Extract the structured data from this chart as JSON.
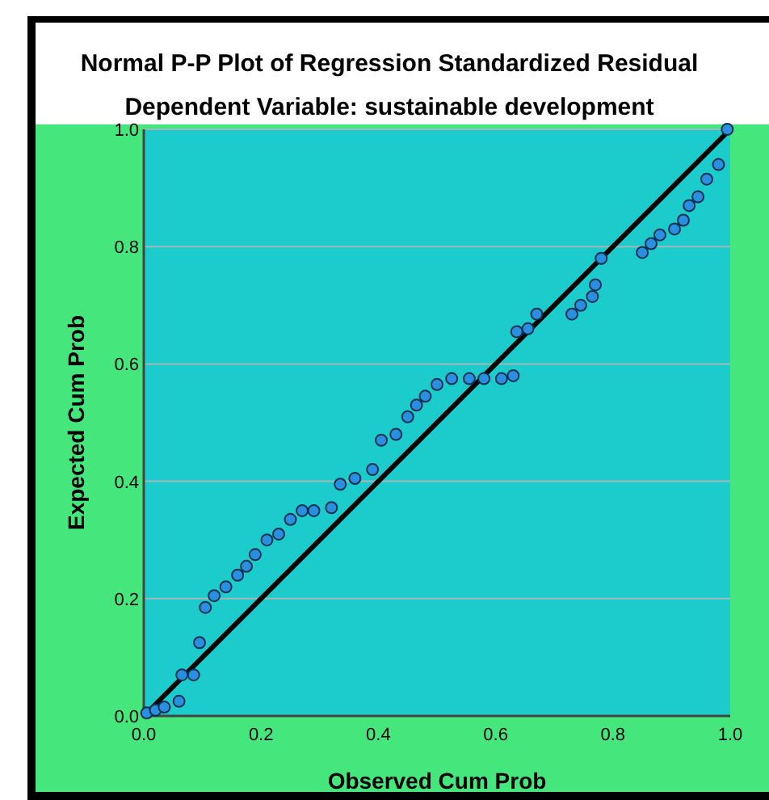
{
  "chart_data": {
    "type": "scatter",
    "title": "Normal P-P Plot of Regression Standardized Residual",
    "subtitle": "Dependent Variable: sustainable development",
    "xlabel": "Observed Cum Prob",
    "ylabel": "Expected Cum Prob",
    "xlim": [
      0,
      1
    ],
    "ylim": [
      0,
      1
    ],
    "xticks": [
      {
        "value": 0,
        "label": "0.0"
      },
      {
        "value": 0.2,
        "label": "0.2"
      },
      {
        "value": 0.4,
        "label": "0.4"
      },
      {
        "value": 0.6,
        "label": "0.6"
      },
      {
        "value": 0.8,
        "label": "0.8"
      },
      {
        "value": 1,
        "label": "1.0"
      }
    ],
    "yticks": [
      {
        "value": 0,
        "label": "0.0"
      },
      {
        "value": 0.2,
        "label": "0.2"
      },
      {
        "value": 0.4,
        "label": "0.4"
      },
      {
        "value": 0.6,
        "label": "0.6"
      },
      {
        "value": 0.8,
        "label": "0.8"
      },
      {
        "value": 1,
        "label": "1.0"
      }
    ],
    "grid": "y",
    "series": [
      {
        "marker": "circle",
        "color": "#2a8fe0",
        "x": [
          0.005,
          0.02,
          0.035,
          0.06,
          0.065,
          0.085,
          0.095,
          0.105,
          0.12,
          0.14,
          0.16,
          0.175,
          0.19,
          0.21,
          0.23,
          0.25,
          0.27,
          0.29,
          0.32,
          0.335,
          0.36,
          0.39,
          0.405,
          0.43,
          0.45,
          0.465,
          0.48,
          0.5,
          0.525,
          0.555,
          0.58,
          0.61,
          0.63,
          0.636,
          0.655,
          0.67,
          0.73,
          0.745,
          0.765,
          0.77,
          0.78,
          0.85,
          0.865,
          0.88,
          0.905,
          0.92,
          0.93,
          0.945,
          0.96,
          0.98,
          0.995
        ],
        "values": [
          0.005,
          0.01,
          0.015,
          0.025,
          0.07,
          0.07,
          0.125,
          0.185,
          0.205,
          0.22,
          0.24,
          0.255,
          0.275,
          0.3,
          0.31,
          0.335,
          0.35,
          0.35,
          0.355,
          0.395,
          0.405,
          0.42,
          0.47,
          0.48,
          0.51,
          0.53,
          0.545,
          0.565,
          0.575,
          0.575,
          0.575,
          0.575,
          0.58,
          0.655,
          0.66,
          0.685,
          0.685,
          0.7,
          0.715,
          0.735,
          0.78,
          0.79,
          0.805,
          0.82,
          0.83,
          0.845,
          0.87,
          0.885,
          0.915,
          0.94,
          1.0
        ]
      },
      {
        "type": "line",
        "color": "#000000",
        "x": [
          0,
          1
        ],
        "values": [
          0,
          1
        ]
      }
    ]
  }
}
